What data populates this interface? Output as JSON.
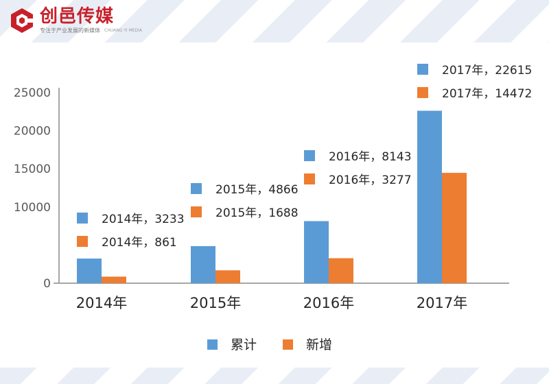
{
  "header": {
    "brand_name": "创邑传媒",
    "slogan": "专注于产业发展的新媒体",
    "brand_sub": "CHUANG YI MEDIA"
  },
  "chart_data": {
    "type": "bar",
    "categories": [
      "2014年",
      "2015年",
      "2016年",
      "2017年"
    ],
    "series": [
      {
        "name": "累计",
        "values": [
          3233,
          4866,
          8143,
          22615
        ],
        "color": "#5b9bd5"
      },
      {
        "name": "新增",
        "values": [
          861,
          1688,
          3277,
          14472
        ],
        "color": "#ed7d31"
      }
    ],
    "data_labels": [
      [
        "2014年，3233",
        "2015年，4866",
        "2016年，8143",
        "2017年，22615"
      ],
      [
        "2014年，861",
        "2015年，1688",
        "2016年，3277",
        "2017年，14472"
      ]
    ],
    "yticks": [
      "0",
      "10000",
      "15000",
      "20000",
      "25000"
    ],
    "ylim": [
      0,
      25000
    ],
    "legend": [
      "累计",
      "新增"
    ],
    "legend_position": "bottom",
    "grid": false
  }
}
